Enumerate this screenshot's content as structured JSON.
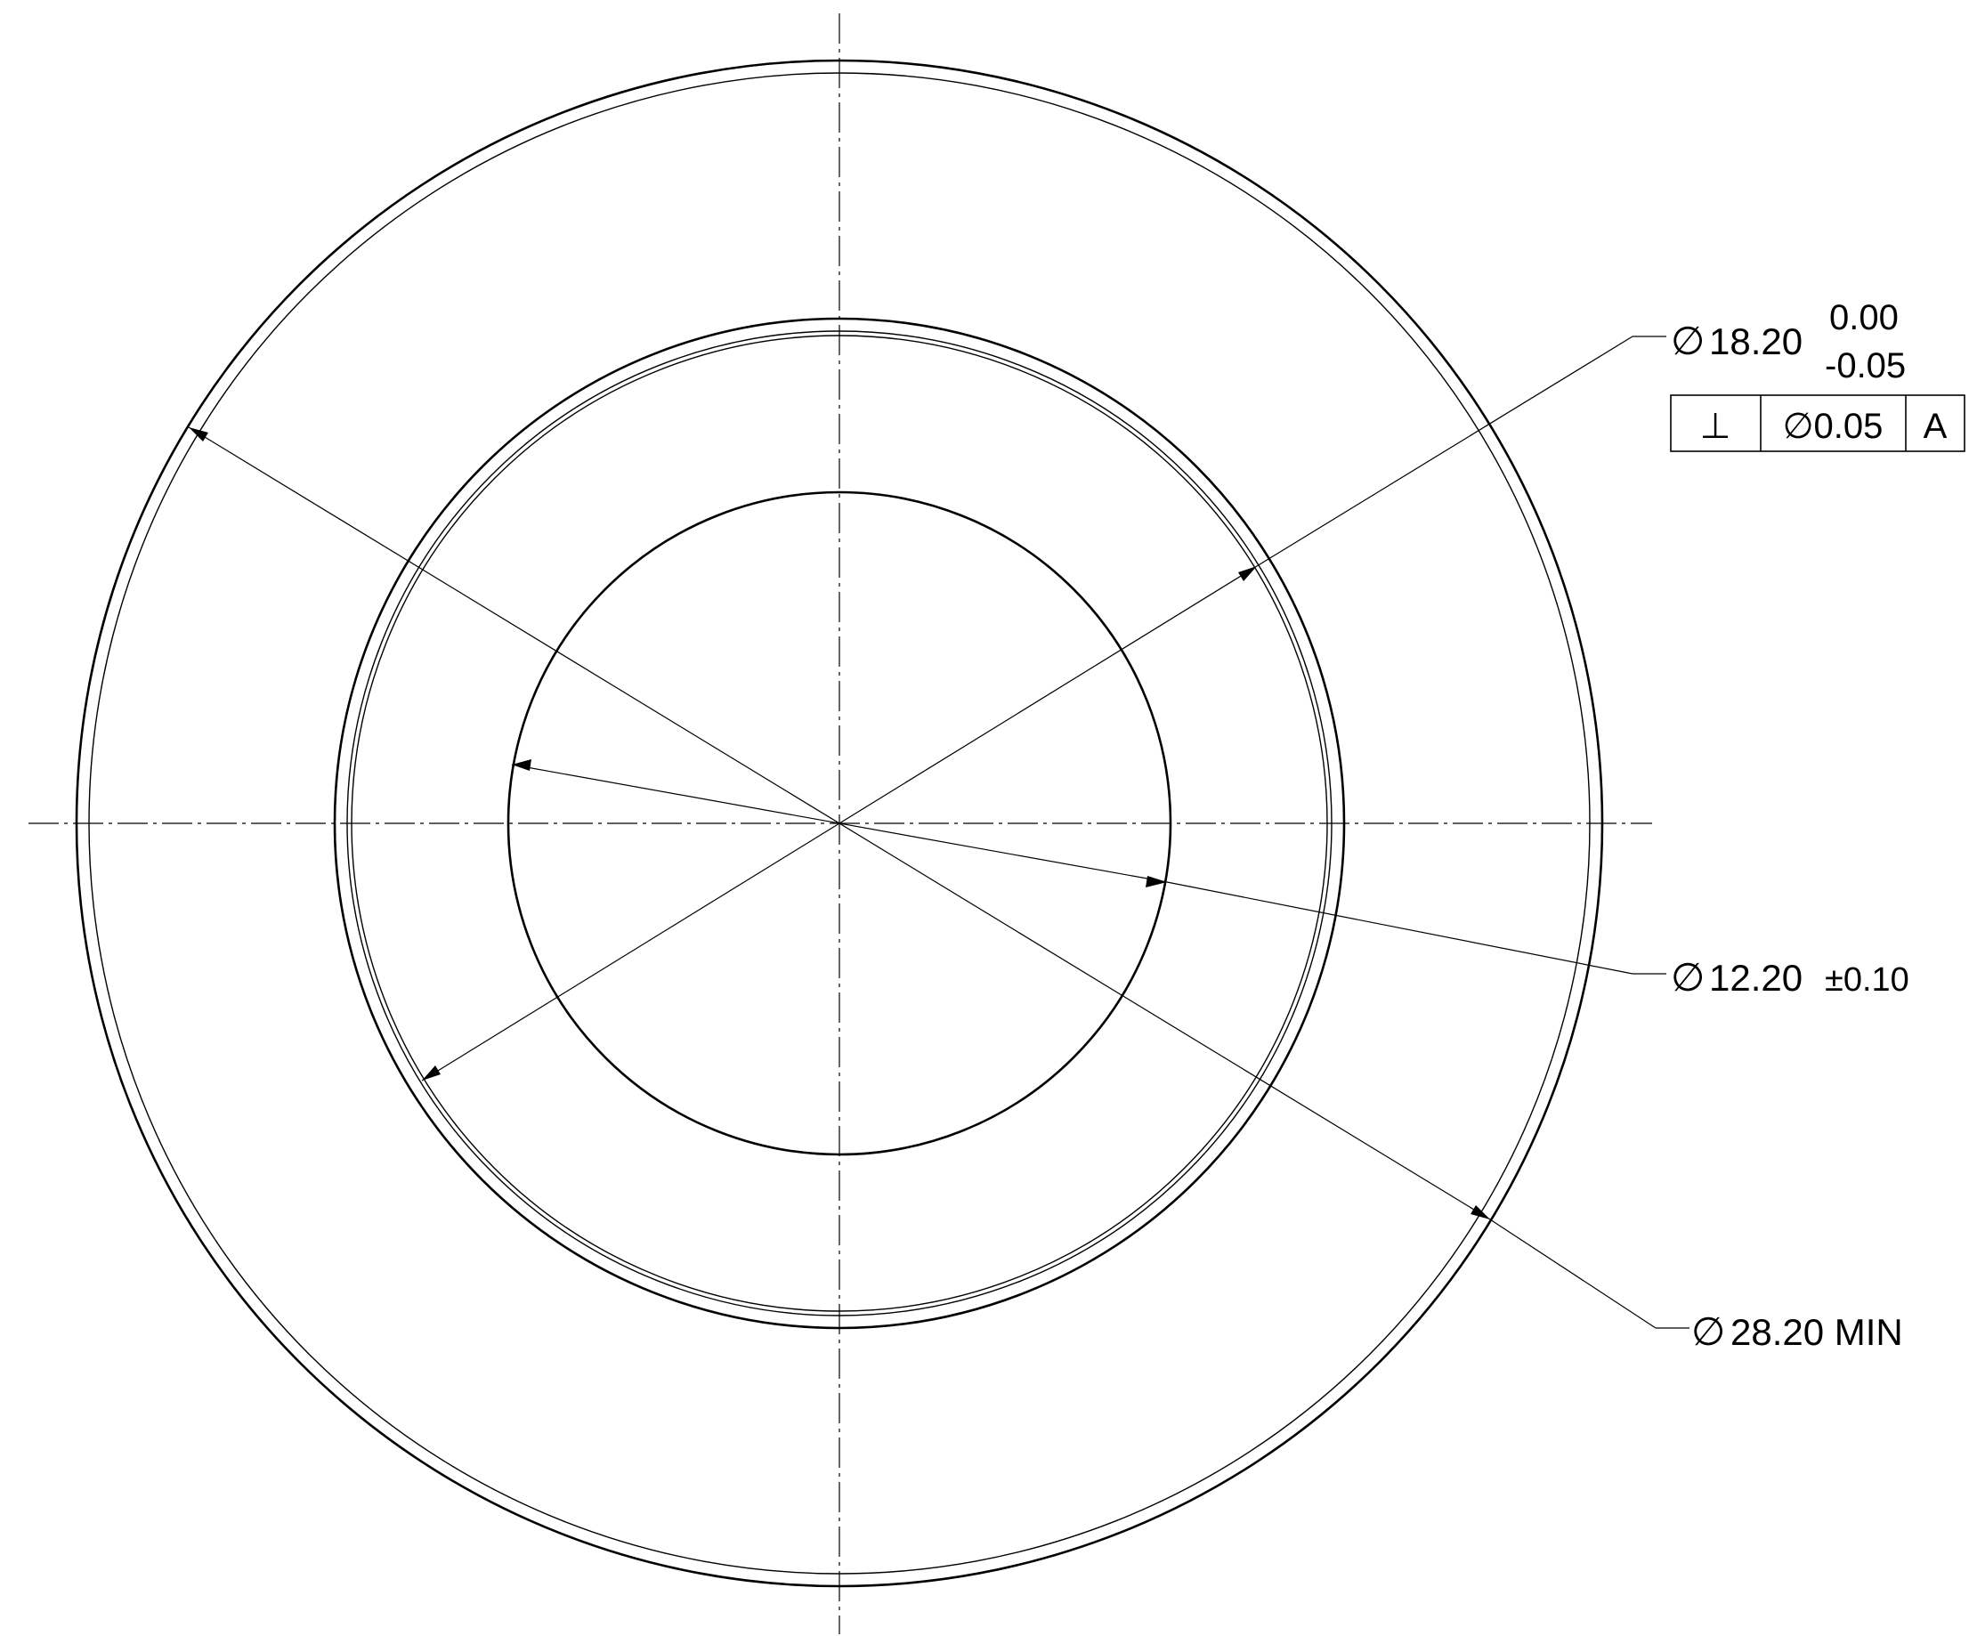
{
  "dimensions": {
    "outer": {
      "symbol": "∅",
      "value": "28.20 MIN"
    },
    "bore": {
      "symbol": "∅",
      "value": "18.20",
      "upper_tolerance": "0.00",
      "lower_tolerance": "-0.05"
    },
    "inner": {
      "symbol": "∅",
      "value": "12.20",
      "tolerance": "±0.10"
    }
  },
  "feature_control_frame": {
    "characteristic": "⊥",
    "tolerance": "∅0.05",
    "datum": "A"
  },
  "colors": {
    "line": "#000000",
    "background": "#ffffff"
  }
}
